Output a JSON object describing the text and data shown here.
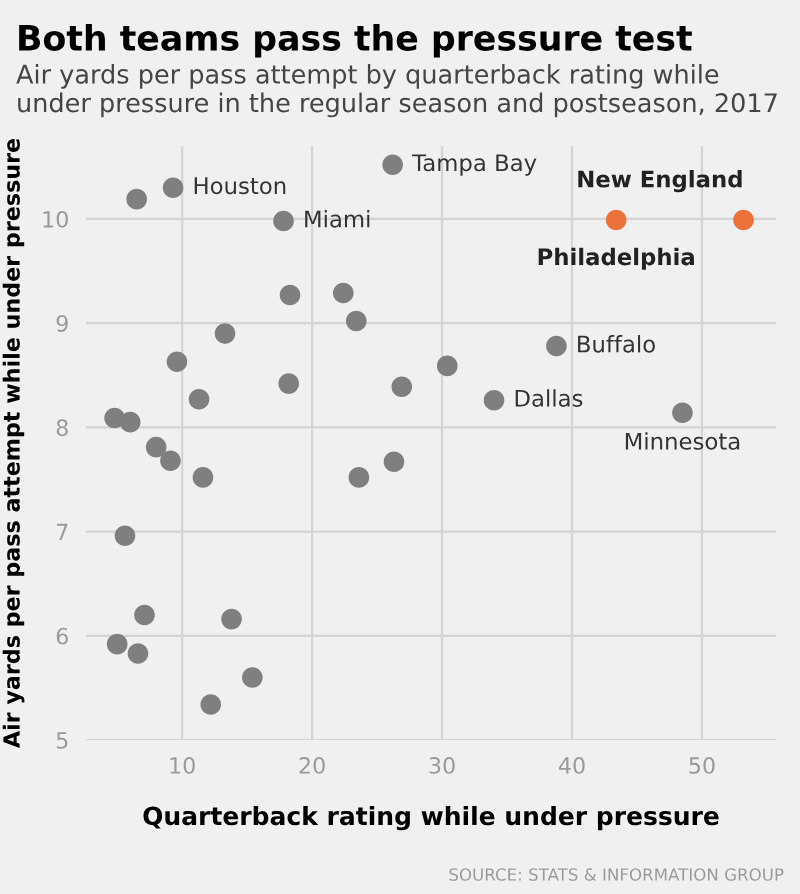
{
  "chart_data": {
    "type": "scatter",
    "title": "Both teams pass the pressure test",
    "subtitle": "Air yards per pass attempt by quarterback rating while under pressure in the regular season and postseason, 2017",
    "xlabel": "Quarterback rating while under pressure",
    "ylabel": "Air yards per pass attempt while under pressure",
    "xlim": [
      2.6,
      55.7
    ],
    "ylim": [
      5,
      10.7
    ],
    "xticks": [
      10,
      20,
      30,
      40,
      50
    ],
    "yticks": [
      5,
      6,
      7,
      8,
      9,
      10
    ],
    "grid": true,
    "marker": "circle",
    "series": [
      {
        "color": "#7f7f7f",
        "x": [
          6.5,
          9.3,
          17.8,
          26.2,
          18.3,
          22.4,
          23.4,
          13.3,
          9.6,
          18.2,
          11.3,
          4.8,
          6.0,
          8.0,
          9.1,
          11.6,
          23.6,
          26.3,
          38.8,
          30.4,
          26.9,
          34.0,
          48.5,
          5.6,
          7.1,
          13.8,
          5.0,
          6.6,
          15.4,
          12.2
        ],
        "values": [
          10.19,
          10.3,
          9.98,
          10.52,
          9.27,
          9.29,
          9.02,
          8.9,
          8.63,
          8.42,
          8.27,
          8.09,
          8.05,
          7.81,
          7.68,
          7.52,
          7.52,
          7.67,
          8.78,
          8.59,
          8.39,
          8.26,
          8.14,
          6.96,
          6.2,
          6.16,
          5.92,
          5.83,
          5.6,
          5.34
        ]
      },
      {
        "color": "#ed713a",
        "x": [
          43.4,
          53.2
        ],
        "values": [
          9.99,
          9.99
        ]
      }
    ],
    "annotations": [
      {
        "text": "Houston",
        "x": 9.3,
        "y": 10.3
      },
      {
        "text": "Miami",
        "x": 17.8,
        "y": 9.98
      },
      {
        "text": "Tampa Bay",
        "x": 26.2,
        "y": 10.52
      },
      {
        "text": "Buffalo",
        "x": 38.8,
        "y": 8.78
      },
      {
        "text": "Dallas",
        "x": 34.0,
        "y": 8.26
      },
      {
        "text": "Minnesota",
        "x": 48.5,
        "y": 8.14
      },
      {
        "text": "Philadelphia",
        "x": 43.4,
        "y": 9.99
      },
      {
        "text": "New England",
        "x": 53.2,
        "y": 9.99
      },
      "SOURCE: STATS & INFORMATION GROUP"
    ]
  }
}
